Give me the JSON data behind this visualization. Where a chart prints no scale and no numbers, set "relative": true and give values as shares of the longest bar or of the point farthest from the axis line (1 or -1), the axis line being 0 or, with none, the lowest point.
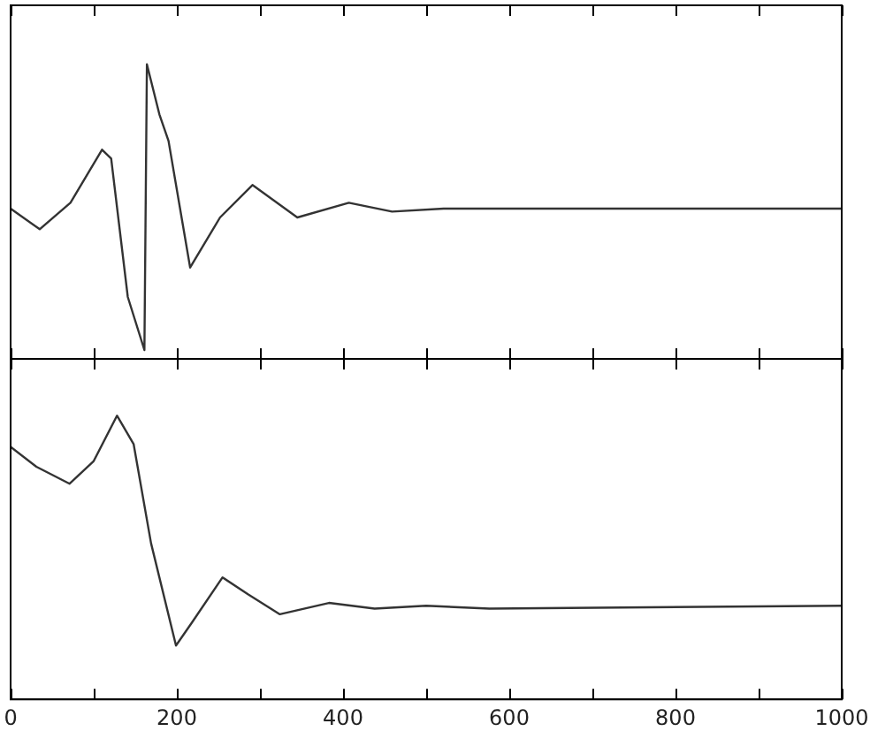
{
  "chart_data": [
    {
      "type": "line",
      "relative": true,
      "tick_labels": false,
      "marker": "none",
      "line_style": "solid",
      "grid": false,
      "xlim": [
        0,
        1000
      ],
      "xticks": [
        {
          "value": 0,
          "label": null
        },
        {
          "value": 100,
          "label": null
        },
        {
          "value": 200,
          "label": null
        },
        {
          "value": 300,
          "label": null
        },
        {
          "value": 400,
          "label": null
        },
        {
          "value": 500,
          "label": null
        },
        {
          "value": 600,
          "label": null
        },
        {
          "value": 700,
          "label": null
        },
        {
          "value": 800,
          "label": null
        },
        {
          "value": 900,
          "label": null
        },
        {
          "value": 1000,
          "label": null
        }
      ],
      "series": [
        {
          "color": "#333333",
          "x": [
            0,
            35,
            72,
            110,
            121,
            141,
            161,
            164,
            179,
            190,
            216,
            252,
            291,
            345,
            407,
            459,
            521,
            583,
            1000
          ],
          "values": [
            0.51,
            0.44,
            0.53,
            0.71,
            0.68,
            0.21,
            0.03,
            1,
            0.83,
            0.74,
            0.31,
            0.48,
            0.59,
            0.48,
            0.53,
            0.5,
            0.51,
            0.51,
            0.51
          ]
        }
      ]
    },
    {
      "type": "line",
      "relative": true,
      "tick_labels": "x",
      "marker": "none",
      "line_style": "solid",
      "grid": false,
      "xlim": [
        0,
        1000
      ],
      "xticks": [
        0,
        {
          "value": 100,
          "label": null
        },
        200,
        {
          "value": 300,
          "label": null
        },
        400,
        {
          "value": 500,
          "label": null
        },
        600,
        {
          "value": 700,
          "label": null
        },
        800,
        {
          "value": 900,
          "label": null
        },
        1000
      ],
      "series": [
        {
          "color": "#333333",
          "x": [
            0,
            31,
            71,
            100,
            128,
            148,
            169,
            199,
            218,
            255,
            286,
            324,
            383,
            438,
            500,
            576,
            1000
          ],
          "values": [
            0.89,
            0.82,
            0.76,
            0.84,
            1,
            0.9,
            0.55,
            0.19,
            0.27,
            0.43,
            0.37,
            0.3,
            0.34,
            0.32,
            0.33,
            0.32,
            0.33
          ]
        }
      ]
    }
  ]
}
